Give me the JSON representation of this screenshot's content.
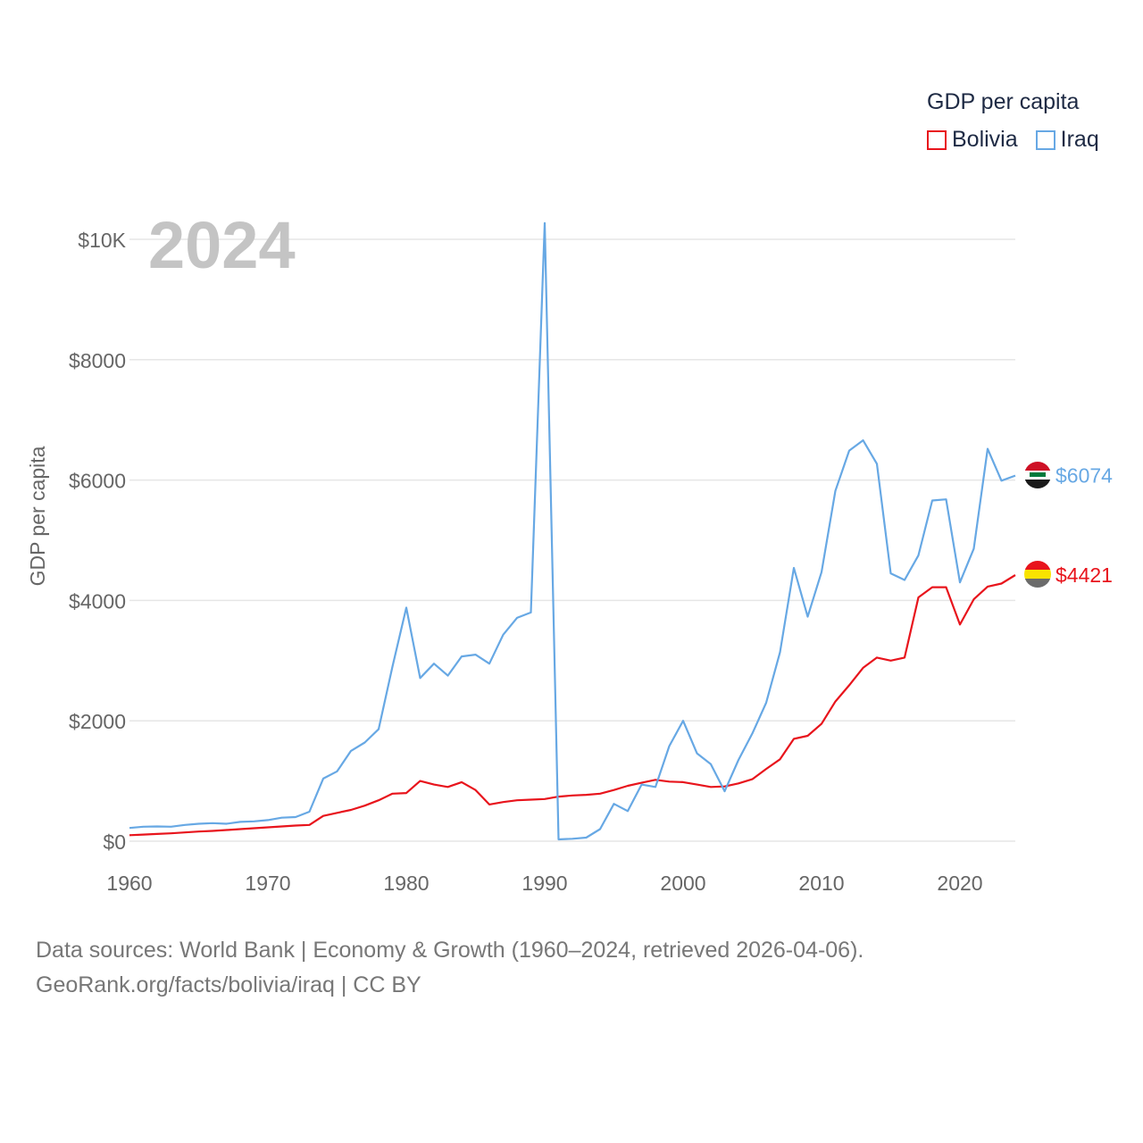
{
  "legend": {
    "title": "GDP per capita",
    "items": [
      {
        "label": "Bolivia",
        "color": "#e8141c"
      },
      {
        "label": "Iraq",
        "color": "#67a8e4"
      }
    ]
  },
  "year_label": "2024",
  "footer": {
    "line1": "Data sources: World Bank | Economy & Growth (1960–2024, retrieved 2026-04-06).",
    "line2": "GeoRank.org/facts/bolivia/iraq | CC BY"
  },
  "chart_data": {
    "type": "line",
    "title": "GDP per capita",
    "xlabel": "",
    "ylabel": "GDP per capita",
    "xlim": [
      1960,
      2024
    ],
    "ylim": [
      0,
      10000
    ],
    "x_ticks": [
      1960,
      1970,
      1980,
      1990,
      2000,
      2010,
      2020
    ],
    "y_ticks": [
      0,
      2000,
      4000,
      6000,
      8000,
      10000
    ],
    "y_tick_labels": [
      "$0",
      "$2000",
      "$4000",
      "$6000",
      "$8000",
      "$10K"
    ],
    "grid": true,
    "legend_position": "top-right",
    "x": [
      1960,
      1961,
      1962,
      1963,
      1964,
      1965,
      1966,
      1967,
      1968,
      1969,
      1970,
      1971,
      1972,
      1973,
      1974,
      1975,
      1976,
      1977,
      1978,
      1979,
      1980,
      1981,
      1982,
      1983,
      1984,
      1985,
      1986,
      1987,
      1988,
      1989,
      1990,
      1991,
      1992,
      1993,
      1994,
      1995,
      1996,
      1997,
      1998,
      1999,
      2000,
      2001,
      2002,
      2003,
      2004,
      2005,
      2006,
      2007,
      2008,
      2009,
      2010,
      2011,
      2012,
      2013,
      2014,
      2015,
      2016,
      2017,
      2018,
      2019,
      2020,
      2021,
      2022,
      2023,
      2024
    ],
    "series": [
      {
        "name": "Bolivia",
        "color": "#e8141c",
        "end_label": "$4421",
        "values": [
          100,
          110,
          120,
          130,
          145,
          160,
          170,
          185,
          200,
          215,
          230,
          245,
          260,
          270,
          420,
          470,
          520,
          590,
          680,
          790,
          800,
          1000,
          940,
          900,
          980,
          850,
          610,
          650,
          680,
          690,
          700,
          740,
          760,
          770,
          790,
          850,
          920,
          970,
          1020,
          990,
          980,
          940,
          900,
          910,
          960,
          1030,
          1200,
          1360,
          1700,
          1750,
          1950,
          2320,
          2590,
          2880,
          3050,
          3000,
          3050,
          4050,
          4220,
          4220,
          3600,
          4020,
          4230,
          4280,
          4421
        ]
      },
      {
        "name": "Iraq",
        "color": "#67a8e4",
        "end_label": "$6074",
        "values": [
          220,
          240,
          245,
          240,
          270,
          290,
          300,
          290,
          320,
          330,
          350,
          390,
          400,
          490,
          1040,
          1160,
          1500,
          1640,
          1860,
          2900,
          3880,
          2710,
          2950,
          2750,
          3070,
          3100,
          2950,
          3430,
          3710,
          3800,
          10270,
          30,
          40,
          60,
          200,
          620,
          500,
          940,
          900,
          1580,
          2000,
          1460,
          1280,
          830,
          1350,
          1790,
          2300,
          3140,
          4540,
          3730,
          4470,
          5820,
          6490,
          6660,
          6270,
          4450,
          4340,
          4750,
          5660,
          5680,
          4300,
          4860,
          6520,
          5990,
          6074
        ]
      }
    ]
  }
}
